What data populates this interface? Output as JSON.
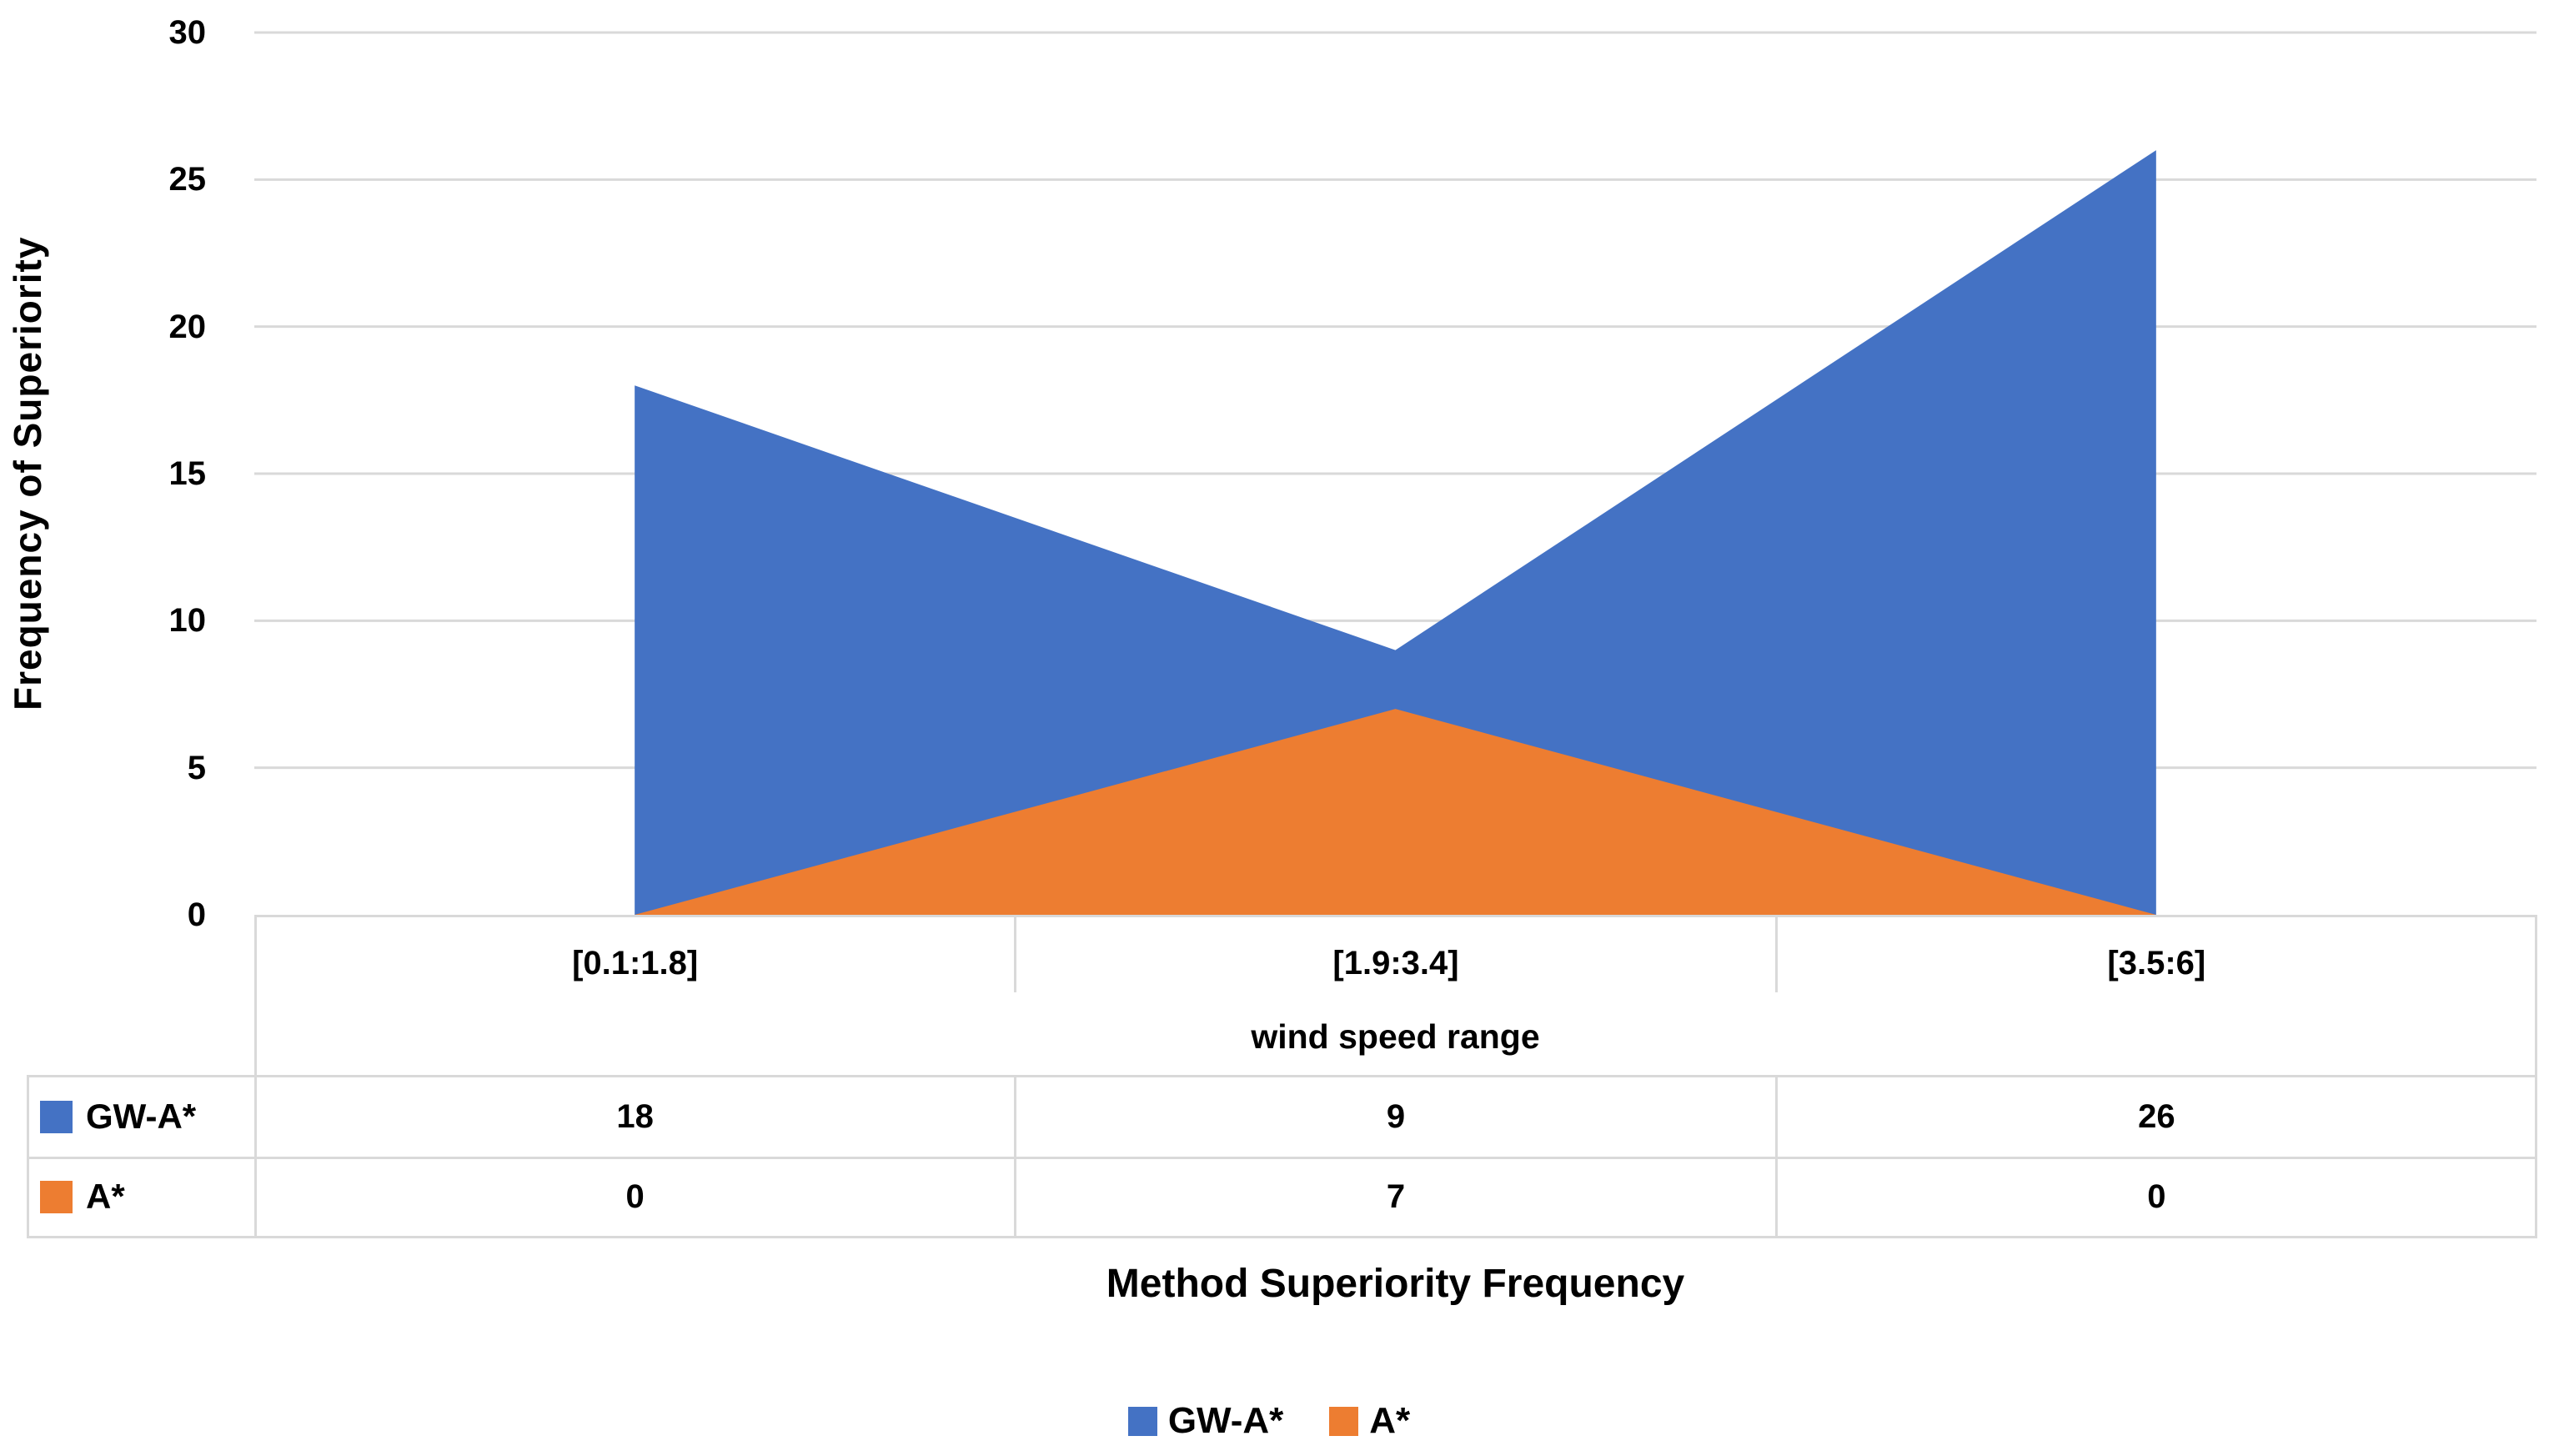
{
  "chart_data": {
    "type": "area",
    "title": "Method Superiority Frequency",
    "xlabel": "wind speed range",
    "ylabel": "Frequency of Superiority",
    "categories": [
      "[0.1:1.8]",
      "[1.9:3.4]",
      "[3.5:6]"
    ],
    "series": [
      {
        "name": "GW-A*",
        "color": "#4472C4",
        "values": [
          18,
          9,
          26
        ]
      },
      {
        "name": "A*",
        "color": "#ED7D31",
        "values": [
          0,
          7,
          0
        ]
      }
    ],
    "ylim": [
      0,
      30
    ],
    "ytick_step": 5,
    "ytick_labels": [
      "30",
      "25",
      "20",
      "15",
      "10",
      "5",
      "0"
    ],
    "grid": true,
    "legend_position": "bottom",
    "data_table_shown": true
  },
  "colors": {
    "grid_line": "#D9D9D9",
    "table_border": "#D9D9D9",
    "text": "#000000",
    "background": "#FFFFFF"
  }
}
